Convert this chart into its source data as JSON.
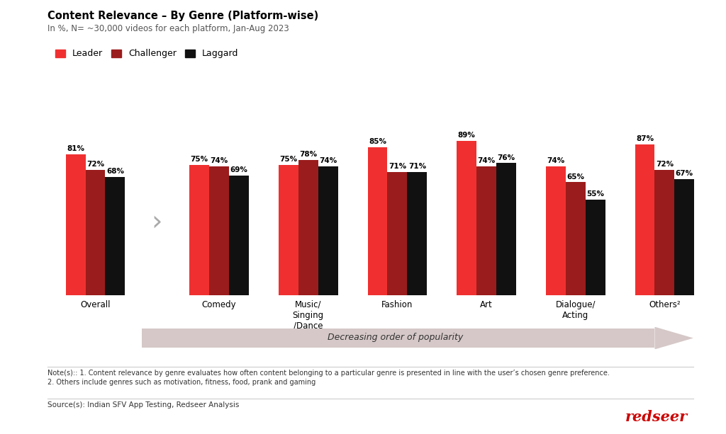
{
  "title": "Content Relevance – By Genre (Platform-wise)",
  "subtitle": "In %, N= ~30,000 videos for each platform, Jan-Aug 2023",
  "categories": [
    "Overall",
    "Comedy",
    "Music/\nSinging\n/Dance",
    "Fashion",
    "Art",
    "Dialogue/\nActing",
    "Others²"
  ],
  "leader_values": [
    81,
    75,
    75,
    85,
    89,
    74,
    87
  ],
  "challenger_values": [
    72,
    74,
    78,
    71,
    74,
    65,
    72
  ],
  "laggard_values": [
    68,
    69,
    74,
    71,
    76,
    55,
    67
  ],
  "leader_color": "#F03030",
  "challenger_color": "#9B1C1C",
  "laggard_color": "#111111",
  "background_color": "#FFFFFF",
  "legend_labels": [
    "Leader",
    "Challenger",
    "Laggard"
  ],
  "arrow_text": "Decreasing order of popularity",
  "note_text": "Note(s):: 1. Content relevance by genre evaluates how often content belonging to a particular genre is presented in line with the user’s chosen genre preference.\n2. Others include genres such as motivation, fitness, food, prank and gaming",
  "source_text": "Source(s): Indian SFV App Testing, Redseer Analysis",
  "redseer_text": "redseer",
  "bar_width": 0.2,
  "font_size_title": 10.5,
  "font_size_subtitle": 8.5,
  "font_size_values": 7.5,
  "font_size_legend": 9,
  "font_size_xtick": 8.5,
  "ylim": [
    0,
    105
  ]
}
